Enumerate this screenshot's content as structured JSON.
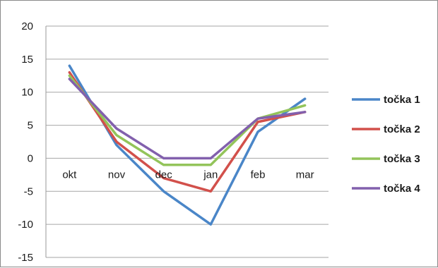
{
  "chart_data": {
    "type": "line",
    "categories": [
      "okt",
      "nov",
      "dec",
      "jan",
      "feb",
      "mar"
    ],
    "ylim": [
      -15,
      20
    ],
    "yticks": [
      20,
      15,
      10,
      5,
      0,
      -5,
      -10,
      -15
    ],
    "grid": true,
    "legend_position": "right",
    "series": [
      {
        "name": "točka 1",
        "color": "#4a86c8",
        "values": [
          14,
          2,
          -5,
          -10,
          4,
          9
        ]
      },
      {
        "name": "točka 2",
        "color": "#d2504b",
        "values": [
          13,
          2.5,
          -3,
          -5,
          5.5,
          7
        ]
      },
      {
        "name": "točka 3",
        "color": "#93c45a",
        "values": [
          12.5,
          3.5,
          -1,
          -1,
          6,
          8
        ]
      },
      {
        "name": "točka 4",
        "color": "#8260ad",
        "values": [
          12,
          4.5,
          0,
          0,
          6,
          7
        ]
      }
    ]
  }
}
